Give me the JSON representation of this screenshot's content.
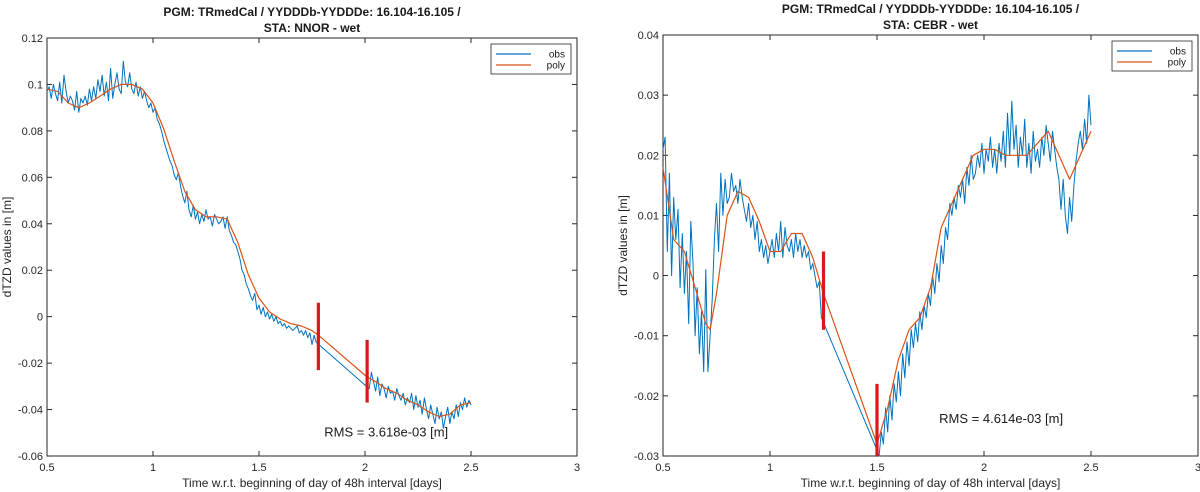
{
  "chart_data": [
    {
      "type": "line",
      "title_line1": "PGM: TRmedCal / YYDDDb-YYDDDe: 16.104-16.105 /",
      "title_line2": "STA: NNOR - wet",
      "xlabel": "Time w.r.t. beginning of day of 48h interval [days]",
      "ylabel": "dTZD values in [m]",
      "xlim": [
        0.5,
        3
      ],
      "ylim": [
        -0.06,
        0.12
      ],
      "xticks": [
        0.5,
        1,
        1.5,
        2,
        2.5,
        3
      ],
      "xtick_labels": [
        "0.5",
        "1",
        "1.5",
        "2",
        "2.5",
        "3"
      ],
      "yticks": [
        -0.06,
        -0.04,
        -0.02,
        0,
        0.02,
        0.04,
        0.06,
        0.08,
        0.1,
        0.12
      ],
      "ytick_labels": [
        "-0.06",
        "-0.04",
        "-0.02",
        "0",
        "0.02",
        "0.04",
        "0.06",
        "0.08",
        "0.1",
        "0.12"
      ],
      "legend_placement": "top-right",
      "grid": false,
      "annotation": "RMS = 3.618e-03 [m]",
      "annotation_pos": [
        2.1,
        -0.0515
      ],
      "series": [
        {
          "name": "obs",
          "color": "#0072BD",
          "x": [
            0.5,
            0.51,
            0.52,
            0.53,
            0.54,
            0.55,
            0.56,
            0.57,
            0.58,
            0.59,
            0.6,
            0.61,
            0.62,
            0.63,
            0.64,
            0.65,
            0.66,
            0.67,
            0.68,
            0.69,
            0.7,
            0.71,
            0.72,
            0.73,
            0.74,
            0.75,
            0.76,
            0.77,
            0.78,
            0.79,
            0.8,
            0.81,
            0.82,
            0.83,
            0.84,
            0.85,
            0.86,
            0.87,
            0.88,
            0.89,
            0.9,
            0.91,
            0.92,
            0.93,
            0.94,
            0.95,
            0.96,
            0.97,
            0.98,
            0.99,
            1.0,
            1.01,
            1.02,
            1.03,
            1.04,
            1.05,
            1.06,
            1.07,
            1.08,
            1.09,
            1.1,
            1.11,
            1.12,
            1.13,
            1.14,
            1.15,
            1.16,
            1.17,
            1.18,
            1.19,
            1.2,
            1.21,
            1.22,
            1.23,
            1.24,
            1.25,
            1.26,
            1.27,
            1.28,
            1.29,
            1.3,
            1.31,
            1.32,
            1.33,
            1.34,
            1.35,
            1.36,
            1.37,
            1.38,
            1.39,
            1.4,
            1.41,
            1.42,
            1.43,
            1.44,
            1.45,
            1.46,
            1.47,
            1.48,
            1.49,
            1.5,
            1.51,
            1.52,
            1.53,
            1.54,
            1.55,
            1.56,
            1.57,
            1.58,
            1.59,
            1.6,
            1.61,
            1.62,
            1.63,
            1.64,
            1.65,
            1.66,
            1.67,
            1.68,
            1.69,
            1.7,
            1.71,
            1.72,
            1.73,
            1.74,
            1.75,
            1.76,
            1.77,
            2.02,
            2.03,
            2.04,
            2.05,
            2.06,
            2.07,
            2.08,
            2.09,
            2.1,
            2.11,
            2.12,
            2.13,
            2.14,
            2.15,
            2.16,
            2.17,
            2.18,
            2.19,
            2.2,
            2.21,
            2.22,
            2.23,
            2.24,
            2.25,
            2.26,
            2.27,
            2.28,
            2.29,
            2.3,
            2.31,
            2.32,
            2.33,
            2.34,
            2.35,
            2.36,
            2.37,
            2.38,
            2.39,
            2.4,
            2.41,
            2.42,
            2.43,
            2.44,
            2.45,
            2.46,
            2.47,
            2.48,
            2.49,
            2.5
          ],
          "y": [
            0.097,
            0.099,
            0.094,
            0.1,
            0.096,
            0.093,
            0.101,
            0.092,
            0.104,
            0.097,
            0.092,
            0.095,
            0.093,
            0.089,
            0.097,
            0.088,
            0.094,
            0.092,
            0.095,
            0.091,
            0.098,
            0.093,
            0.099,
            0.094,
            0.102,
            0.097,
            0.104,
            0.095,
            0.101,
            0.093,
            0.107,
            0.094,
            0.1,
            0.105,
            0.098,
            0.096,
            0.11,
            0.101,
            0.099,
            0.105,
            0.098,
            0.096,
            0.101,
            0.095,
            0.099,
            0.094,
            0.097,
            0.093,
            0.09,
            0.092,
            0.088,
            0.09,
            0.085,
            0.083,
            0.08,
            0.076,
            0.073,
            0.07,
            0.067,
            0.065,
            0.061,
            0.059,
            0.062,
            0.056,
            0.052,
            0.049,
            0.054,
            0.046,
            0.043,
            0.048,
            0.042,
            0.045,
            0.04,
            0.044,
            0.041,
            0.046,
            0.042,
            0.043,
            0.039,
            0.044,
            0.042,
            0.04,
            0.041,
            0.043,
            0.038,
            0.043,
            0.037,
            0.035,
            0.032,
            0.031,
            0.028,
            0.025,
            0.02,
            0.018,
            0.014,
            0.012,
            0.009,
            0.007,
            0.01,
            0.003,
            0.005,
            0.001,
            0.004,
            0.0,
            0.002,
            -0.001,
            0.001,
            -0.002,
            0.0,
            -0.003,
            -0.002,
            -0.004,
            -0.003,
            -0.005,
            -0.004,
            -0.005,
            -0.006,
            -0.005,
            -0.004,
            -0.007,
            -0.006,
            -0.008,
            -0.006,
            -0.009,
            -0.007,
            -0.012,
            -0.008,
            -0.011,
            -0.031,
            -0.024,
            -0.028,
            -0.032,
            -0.026,
            -0.034,
            -0.029,
            -0.031,
            -0.035,
            -0.03,
            -0.033,
            -0.032,
            -0.036,
            -0.031,
            -0.034,
            -0.036,
            -0.033,
            -0.038,
            -0.035,
            -0.037,
            -0.033,
            -0.04,
            -0.034,
            -0.039,
            -0.036,
            -0.042,
            -0.035,
            -0.04,
            -0.044,
            -0.038,
            -0.042,
            -0.046,
            -0.039,
            -0.044,
            -0.041,
            -0.048,
            -0.043,
            -0.039,
            -0.046,
            -0.041,
            -0.044,
            -0.038,
            -0.043,
            -0.037,
            -0.04,
            -0.035,
            -0.039,
            -0.036,
            -0.038
          ]
        },
        {
          "name": "poly",
          "color": "#D95319",
          "x": [
            0.5,
            0.55,
            0.6,
            0.65,
            0.7,
            0.75,
            0.8,
            0.85,
            0.9,
            0.95,
            1.0,
            1.05,
            1.1,
            1.15,
            1.2,
            1.25,
            1.3,
            1.35,
            1.4,
            1.45,
            1.5,
            1.55,
            1.6,
            1.65,
            1.7,
            1.75,
            1.78,
            2.01,
            2.05,
            2.1,
            2.15,
            2.2,
            2.25,
            2.3,
            2.35,
            2.4,
            2.45,
            2.5
          ],
          "y": [
            0.098,
            0.097,
            0.092,
            0.09,
            0.092,
            0.095,
            0.098,
            0.1,
            0.1,
            0.098,
            0.092,
            0.081,
            0.067,
            0.054,
            0.046,
            0.043,
            0.043,
            0.042,
            0.032,
            0.018,
            0.008,
            0.002,
            -0.001,
            -0.003,
            -0.004,
            -0.006,
            -0.008,
            -0.026,
            -0.028,
            -0.031,
            -0.033,
            -0.036,
            -0.038,
            -0.041,
            -0.043,
            -0.042,
            -0.038,
            -0.037
          ]
        }
      ],
      "markers": [
        {
          "x": 1.78,
          "y0": -0.023,
          "y1": 0.006
        },
        {
          "x": 2.01,
          "y0": -0.037,
          "y1": -0.01
        }
      ]
    },
    {
      "type": "line",
      "title_line1": "PGM: TRmedCal / YYDDDb-YYDDDe: 16.104-16.105 /",
      "title_line2": "STA: CEBR - wet",
      "xlabel": "Time w.r.t. beginning of day of 48h interval [days]",
      "ylabel": "dTZD values in [m]",
      "xlim": [
        0.5,
        3
      ],
      "ylim": [
        -0.03,
        0.04
      ],
      "xticks": [
        0.5,
        1,
        1.5,
        2,
        2.5,
        3
      ],
      "xtick_labels": [
        "0.5",
        "1",
        "1.5",
        "2",
        "2.5",
        "3"
      ],
      "yticks": [
        -0.03,
        -0.02,
        -0.01,
        0,
        0.01,
        0.02,
        0.03,
        0.04
      ],
      "ytick_labels": [
        "-0.03",
        "-0.02",
        "-0.01",
        "0",
        "0.01",
        "0.02",
        "0.03",
        "0.04"
      ],
      "legend_placement": "top-right",
      "grid": false,
      "annotation": "RMS = 4.614e-03 [m]",
      "annotation_pos": [
        2.08,
        -0.0245
      ],
      "series": [
        {
          "name": "obs",
          "color": "#0072BD",
          "x": [
            0.5,
            0.51,
            0.52,
            0.53,
            0.54,
            0.55,
            0.56,
            0.57,
            0.58,
            0.59,
            0.6,
            0.61,
            0.62,
            0.63,
            0.64,
            0.65,
            0.66,
            0.67,
            0.68,
            0.69,
            0.7,
            0.71,
            0.72,
            0.73,
            0.74,
            0.75,
            0.76,
            0.77,
            0.78,
            0.79,
            0.8,
            0.81,
            0.82,
            0.83,
            0.84,
            0.85,
            0.86,
            0.87,
            0.88,
            0.89,
            0.9,
            0.91,
            0.92,
            0.93,
            0.94,
            0.95,
            0.96,
            0.97,
            0.98,
            0.99,
            1.0,
            1.01,
            1.02,
            1.03,
            1.04,
            1.05,
            1.06,
            1.07,
            1.08,
            1.09,
            1.1,
            1.11,
            1.12,
            1.13,
            1.14,
            1.15,
            1.16,
            1.17,
            1.18,
            1.19,
            1.2,
            1.21,
            1.22,
            1.23,
            1.24,
            1.5,
            1.51,
            1.52,
            1.53,
            1.54,
            1.55,
            1.56,
            1.57,
            1.58,
            1.59,
            1.6,
            1.61,
            1.62,
            1.63,
            1.64,
            1.65,
            1.66,
            1.67,
            1.68,
            1.69,
            1.7,
            1.71,
            1.72,
            1.73,
            1.74,
            1.75,
            1.76,
            1.77,
            1.78,
            1.79,
            1.8,
            1.81,
            1.82,
            1.83,
            1.84,
            1.85,
            1.86,
            1.87,
            1.88,
            1.89,
            1.9,
            1.91,
            1.92,
            1.93,
            1.94,
            1.95,
            1.96,
            1.97,
            1.98,
            1.99,
            2.0,
            2.01,
            2.02,
            2.03,
            2.04,
            2.05,
            2.06,
            2.07,
            2.08,
            2.09,
            2.1,
            2.11,
            2.12,
            2.13,
            2.14,
            2.15,
            2.16,
            2.17,
            2.18,
            2.19,
            2.2,
            2.21,
            2.22,
            2.23,
            2.24,
            2.25,
            2.26,
            2.27,
            2.28,
            2.29,
            2.3,
            2.31,
            2.32,
            2.33,
            2.34,
            2.35,
            2.36,
            2.37,
            2.38,
            2.39,
            2.4,
            2.41,
            2.42,
            2.43,
            2.44,
            2.45,
            2.46,
            2.47,
            2.48,
            2.49,
            2.5
          ],
          "y": [
            0.021,
            0.023,
            0.004,
            0.017,
            0.0,
            0.013,
            0.006,
            0.011,
            -0.002,
            0.007,
            -0.003,
            0.004,
            -0.008,
            0.009,
            0.002,
            -0.01,
            -0.002,
            -0.013,
            -0.006,
            -0.016,
            0.001,
            -0.016,
            -0.01,
            -0.004,
            0.006,
            0.012,
            0.004,
            0.017,
            0.01,
            0.016,
            0.012,
            0.013,
            0.017,
            0.014,
            0.015,
            0.012,
            0.016,
            0.013,
            0.011,
            0.009,
            0.012,
            0.008,
            0.01,
            0.006,
            0.009,
            0.004,
            0.006,
            0.003,
            0.005,
            0.002,
            0.004,
            0.006,
            0.003,
            0.007,
            0.004,
            0.009,
            0.003,
            0.008,
            0.005,
            0.004,
            0.006,
            0.003,
            0.007,
            0.004,
            0.006,
            0.003,
            0.005,
            0.003,
            0.004,
            0.001,
            0.002,
            0.0,
            -0.002,
            -0.001,
            -0.007,
            -0.029,
            -0.03,
            -0.026,
            -0.028,
            -0.022,
            -0.026,
            -0.02,
            -0.024,
            -0.018,
            -0.021,
            -0.016,
            -0.02,
            -0.013,
            -0.017,
            -0.011,
            -0.015,
            -0.009,
            -0.012,
            -0.008,
            -0.011,
            -0.006,
            -0.009,
            -0.005,
            -0.007,
            -0.003,
            -0.005,
            0.0,
            -0.003,
            0.002,
            -0.001,
            0.005,
            0.002,
            0.008,
            0.006,
            0.012,
            0.01,
            0.013,
            0.011,
            0.015,
            0.013,
            0.016,
            0.012,
            0.018,
            0.015,
            0.02,
            0.016,
            0.017,
            0.02,
            0.018,
            0.022,
            0.017,
            0.021,
            0.019,
            0.023,
            0.018,
            0.021,
            0.017,
            0.022,
            0.019,
            0.024,
            0.018,
            0.027,
            0.02,
            0.029,
            0.021,
            0.025,
            0.018,
            0.023,
            0.02,
            0.026,
            0.018,
            0.022,
            0.017,
            0.024,
            0.019,
            0.021,
            0.018,
            0.023,
            0.02,
            0.025,
            0.022,
            0.019,
            0.024,
            0.021,
            0.018,
            0.016,
            0.011,
            0.016,
            0.01,
            0.007,
            0.013,
            0.009,
            0.015,
            0.019,
            0.022,
            0.024,
            0.021,
            0.026,
            0.022,
            0.03,
            0.025
          ]
        },
        {
          "name": "poly",
          "color": "#D95319",
          "x": [
            0.5,
            0.55,
            0.6,
            0.65,
            0.7,
            0.72,
            0.75,
            0.8,
            0.85,
            0.9,
            0.95,
            1.0,
            1.05,
            1.1,
            1.15,
            1.2,
            1.25,
            1.5,
            1.55,
            1.6,
            1.65,
            1.7,
            1.75,
            1.8,
            1.85,
            1.9,
            1.95,
            2.0,
            2.05,
            2.1,
            2.15,
            2.2,
            2.25,
            2.3,
            2.35,
            2.4,
            2.45,
            2.5
          ],
          "y": [
            0.018,
            0.006,
            0.004,
            -0.002,
            -0.008,
            -0.009,
            -0.003,
            0.01,
            0.014,
            0.013,
            0.009,
            0.004,
            0.004,
            0.007,
            0.007,
            0.003,
            -0.003,
            -0.028,
            -0.022,
            -0.014,
            -0.009,
            -0.007,
            -0.002,
            0.008,
            0.012,
            0.016,
            0.02,
            0.021,
            0.021,
            0.02,
            0.02,
            0.02,
            0.022,
            0.024,
            0.02,
            0.016,
            0.02,
            0.024
          ]
        }
      ],
      "markers": [
        {
          "x": 1.25,
          "y0": -0.009,
          "y1": 0.004
        },
        {
          "x": 1.5,
          "y0": -0.03,
          "y1": -0.018
        }
      ]
    }
  ]
}
